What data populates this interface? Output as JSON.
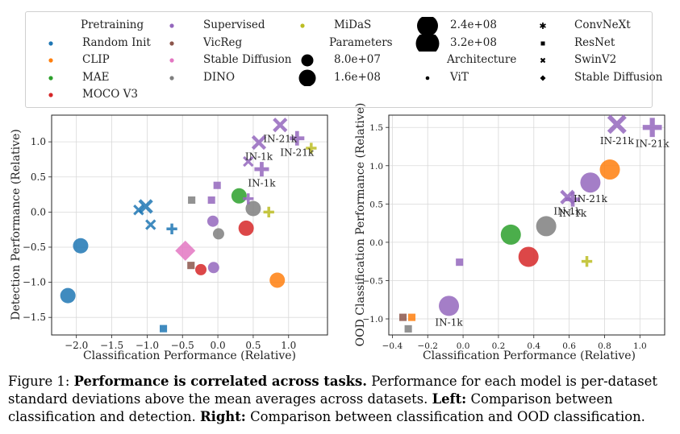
{
  "colors": {
    "random_init": "#1f77b4",
    "clip": "#ff7f0e",
    "mae": "#2ca02c",
    "moco_v3": "#d62728",
    "supervised": "#9467bd",
    "vicreg": "#8c564b",
    "stable_diffusion": "#e377c2",
    "dino": "#7f7f7f",
    "midas": "#bcbd22",
    "grid": "#d9d9d9"
  },
  "legend": {
    "pretraining_title": "Pretraining",
    "pretraining": [
      {
        "name": "Random Init",
        "key": "random_init"
      },
      {
        "name": "CLIP",
        "key": "clip"
      },
      {
        "name": "MAE",
        "key": "mae"
      },
      {
        "name": "MOCO V3",
        "key": "moco_v3"
      },
      {
        "name": "Supervised",
        "key": "supervised"
      },
      {
        "name": "VicReg",
        "key": "vicreg"
      },
      {
        "name": "Stable Diffusion",
        "key": "stable_diffusion"
      },
      {
        "name": "DINO",
        "key": "dino"
      },
      {
        "name": "MiDaS",
        "key": "midas"
      }
    ],
    "parameters_title": "Parameters",
    "parameters": [
      "8.0e+07",
      "1.6e+08",
      "2.4e+08",
      "3.2e+08"
    ],
    "architecture_title": "Architecture",
    "architecture": [
      {
        "name": "ViT",
        "icon": "dot-icon"
      },
      {
        "name": "ConvNeXt",
        "icon": "star-icon"
      },
      {
        "name": "ResNet",
        "icon": "square-icon"
      },
      {
        "name": "SwinV2",
        "icon": "x-icon"
      },
      {
        "name": "Stable Diffusion",
        "icon": "diamond-icon"
      }
    ]
  },
  "caption": {
    "label": "Figure 1:",
    "bold": "Performance is correlated across tasks.",
    "text1": "Performance for each model is per-dataset standard deviations above the mean averages across datasets.",
    "left_label": "Left:",
    "text2": "Comparison between classification and detection.",
    "right_label": "Right:",
    "text3": "Comparison between classification and OOD classification."
  },
  "chart_data": [
    {
      "type": "scatter",
      "title": "",
      "xlabel": "Classification Performance (Relative)",
      "ylabel": "Detection Performance (Relative)",
      "xlim": [
        -2.35,
        1.55
      ],
      "ylim": [
        -1.75,
        1.38
      ],
      "xticks": [
        -2.0,
        -1.5,
        -1.0,
        -0.5,
        0.0,
        0.5,
        1.0
      ],
      "xtick_labels": [
        "−2.0",
        "−1.5",
        "−1.0",
        "−0.5",
        "0.0",
        "0.5",
        "1.0"
      ],
      "yticks": [
        -1.5,
        -1.0,
        -0.5,
        0.0,
        0.5,
        1.0
      ],
      "ytick_labels": [
        "−1.5",
        "−1.0",
        "−0.5",
        "0.0",
        "0.5",
        "1.0"
      ],
      "grid": true,
      "points": [
        {
          "x": -2.12,
          "y": -1.19,
          "pretraining": "random_init",
          "arch": "vit",
          "size": 2
        },
        {
          "x": -1.94,
          "y": -0.48,
          "pretraining": "random_init",
          "arch": "vit",
          "size": 2
        },
        {
          "x": -1.12,
          "y": 0.03,
          "pretraining": "random_init",
          "arch": "swin",
          "size": 1
        },
        {
          "x": -1.02,
          "y": 0.08,
          "pretraining": "random_init",
          "arch": "swin",
          "size": 2
        },
        {
          "x": -0.95,
          "y": -0.18,
          "pretraining": "random_init",
          "arch": "swin",
          "size": 1
        },
        {
          "x": -0.65,
          "y": -0.24,
          "pretraining": "random_init",
          "arch": "convnext",
          "size": 1
        },
        {
          "x": -0.77,
          "y": -1.66,
          "pretraining": "random_init",
          "arch": "resnet",
          "size": 1
        },
        {
          "x": -0.46,
          "y": -0.55,
          "pretraining": "stable_diffusion",
          "arch": "sd",
          "size": 3
        },
        {
          "x": -0.37,
          "y": 0.17,
          "pretraining": "dino",
          "arch": "resnet",
          "size": 1
        },
        {
          "x": 0.01,
          "y": -0.31,
          "pretraining": "dino",
          "arch": "vit",
          "size": 1
        },
        {
          "x": 0.5,
          "y": 0.05,
          "pretraining": "dino",
          "arch": "vit",
          "size": 2
        },
        {
          "x": -0.38,
          "y": -0.76,
          "pretraining": "vicreg",
          "arch": "resnet",
          "size": 1
        },
        {
          "x": -0.24,
          "y": -0.82,
          "pretraining": "moco_v3",
          "arch": "vit",
          "size": 1
        },
        {
          "x": 0.4,
          "y": -0.23,
          "pretraining": "moco_v3",
          "arch": "vit",
          "size": 2
        },
        {
          "x": 0.3,
          "y": 0.23,
          "pretraining": "mae",
          "arch": "vit",
          "size": 2
        },
        {
          "x": 0.84,
          "y": -0.97,
          "pretraining": "clip",
          "arch": "vit",
          "size": 2
        },
        {
          "x": 0.72,
          "y": 0.0,
          "pretraining": "midas",
          "arch": "convnext",
          "size": 1
        },
        {
          "x": 1.32,
          "y": 0.91,
          "pretraining": "midas",
          "arch": "convnext",
          "size": 1
        },
        {
          "x": -0.07,
          "y": -0.13,
          "pretraining": "supervised",
          "arch": "vit",
          "size": 1
        },
        {
          "x": -0.06,
          "y": -0.79,
          "pretraining": "supervised",
          "arch": "vit",
          "size": 1
        },
        {
          "x": -0.09,
          "y": 0.17,
          "pretraining": "supervised",
          "arch": "resnet",
          "size": 1
        },
        {
          "x": -0.01,
          "y": 0.38,
          "pretraining": "supervised",
          "arch": "resnet",
          "size": 1
        },
        {
          "x": 0.43,
          "y": 0.19,
          "pretraining": "supervised",
          "arch": "convnext",
          "size": 1
        },
        {
          "x": 0.43,
          "y": 0.72,
          "pretraining": "supervised",
          "arch": "swin",
          "size": 1
        },
        {
          "x": 0.58,
          "y": 0.99,
          "pretraining": "supervised",
          "arch": "swin",
          "size": 2,
          "label": "IN-1k"
        },
        {
          "x": 0.62,
          "y": 0.61,
          "pretraining": "supervised",
          "arch": "convnext",
          "size": 2,
          "label": "IN-1k"
        },
        {
          "x": 0.88,
          "y": 1.24,
          "pretraining": "supervised",
          "arch": "swin",
          "size": 2,
          "label": "IN-21k"
        },
        {
          "x": 1.12,
          "y": 1.05,
          "pretraining": "supervised",
          "arch": "convnext",
          "size": 2,
          "label": "IN-21k"
        }
      ]
    },
    {
      "type": "scatter",
      "title": "",
      "xlabel": "Classification Performance (Relative)",
      "ylabel": "OOD Classification Performance (Relative)",
      "xlim": [
        -0.42,
        1.14
      ],
      "ylim": [
        -1.21,
        1.66
      ],
      "xticks": [
        -0.4,
        -0.2,
        0.0,
        0.2,
        0.4,
        0.6,
        0.8,
        1.0
      ],
      "xtick_labels": [
        "−0.4",
        "−0.2",
        "0.0",
        "0.2",
        "0.4",
        "0.6",
        "0.8",
        "1.0"
      ],
      "yticks": [
        -1.0,
        -0.5,
        0.0,
        0.5,
        1.0,
        1.5
      ],
      "ytick_labels": [
        "−1.0",
        "−0.5",
        "0.0",
        "0.5",
        "1.0",
        "1.5"
      ],
      "grid": true,
      "points": [
        {
          "x": -0.34,
          "y": -0.98,
          "pretraining": "vicreg",
          "arch": "resnet",
          "size": 1
        },
        {
          "x": -0.29,
          "y": -0.98,
          "pretraining": "clip",
          "arch": "resnet",
          "size": 1
        },
        {
          "x": -0.31,
          "y": -1.13,
          "pretraining": "dino",
          "arch": "resnet",
          "size": 1
        },
        {
          "x": -0.08,
          "y": -0.83,
          "pretraining": "supervised",
          "arch": "vit",
          "size": 3,
          "label": "IN-1k"
        },
        {
          "x": -0.02,
          "y": -0.26,
          "pretraining": "supervised",
          "arch": "resnet",
          "size": 1
        },
        {
          "x": 0.27,
          "y": 0.1,
          "pretraining": "mae",
          "arch": "vit",
          "size": 3
        },
        {
          "x": 0.37,
          "y": -0.19,
          "pretraining": "moco_v3",
          "arch": "vit",
          "size": 3
        },
        {
          "x": 0.47,
          "y": 0.21,
          "pretraining": "dino",
          "arch": "vit",
          "size": 3
        },
        {
          "x": 0.59,
          "y": 0.59,
          "pretraining": "supervised",
          "arch": "swin",
          "size": 2,
          "label": "IN-1k"
        },
        {
          "x": 0.62,
          "y": 0.56,
          "pretraining": "supervised",
          "arch": "convnext",
          "size": 2,
          "label": "IN-1k"
        },
        {
          "x": 0.7,
          "y": -0.25,
          "pretraining": "midas",
          "arch": "convnext",
          "size": 1
        },
        {
          "x": 0.72,
          "y": 0.78,
          "pretraining": "supervised",
          "arch": "vit",
          "size": 3,
          "label": "IN-21k"
        },
        {
          "x": 0.83,
          "y": 0.95,
          "pretraining": "clip",
          "arch": "vit",
          "size": 3
        },
        {
          "x": 0.87,
          "y": 1.54,
          "pretraining": "supervised",
          "arch": "swin",
          "size": 3,
          "label": "IN-21k"
        },
        {
          "x": 1.07,
          "y": 1.5,
          "pretraining": "supervised",
          "arch": "convnext",
          "size": 3,
          "label": "IN-21k"
        }
      ]
    }
  ]
}
